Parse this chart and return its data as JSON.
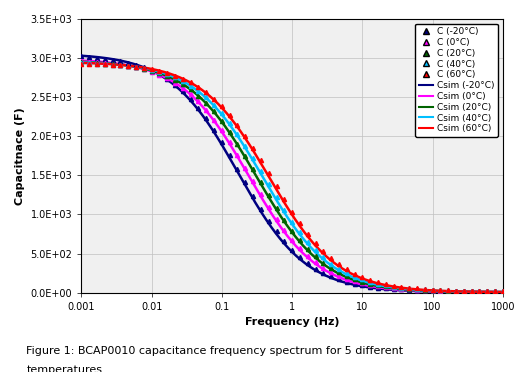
{
  "title": "",
  "xlabel": "Frequency (Hz)",
  "ylabel": "Capacitnace (F)",
  "caption_line1": "Figure 1: BCAP0010 capacitance frequency spectrum for 5 different",
  "caption_line2": "temperatures.",
  "xlim_log": [
    -3,
    3
  ],
  "ylim": [
    0,
    3500
  ],
  "freq_min": 0.001,
  "freq_max": 1000,
  "C_max_values": [
    3050,
    2980,
    2960,
    2950,
    2940
  ],
  "C_knee_freqs": [
    0.18,
    0.25,
    0.32,
    0.4,
    0.5
  ],
  "C_floor": 15,
  "sim_max_values": [
    3060,
    2990,
    2970,
    2960,
    2950
  ],
  "sim_knee_freqs": [
    0.17,
    0.24,
    0.31,
    0.38,
    0.47
  ],
  "sim_floor": 5,
  "temperatures": [
    -20,
    0,
    20,
    40,
    60
  ],
  "marker_colors": [
    "#000080",
    "#ff00ff",
    "#006400",
    "#00bfff",
    "#ff0000"
  ],
  "line_colors": [
    "#000080",
    "#ff00ff",
    "#006400",
    "#00bfff",
    "#ff0000"
  ],
  "marker_styles": [
    "^",
    "^",
    "^",
    "^",
    "^"
  ],
  "background_color": "#f0f0f0",
  "grid_color": "#c0c0c0",
  "ytick_labels": [
    "0.0E+00",
    "5.0E+02",
    "1.0E+03",
    "1.5E+03",
    "2.0E+03",
    "2.5E+03",
    "3.0E+03",
    "3.5E+03"
  ],
  "ytick_values": [
    0,
    500,
    1000,
    1500,
    2000,
    2500,
    3000,
    3500
  ],
  "xtick_labels": [
    "0.001",
    "0.01",
    "0.1",
    "1",
    "10",
    "100",
    "1000"
  ],
  "xtick_values": [
    0.001,
    0.01,
    0.1,
    1,
    10,
    100,
    1000
  ]
}
